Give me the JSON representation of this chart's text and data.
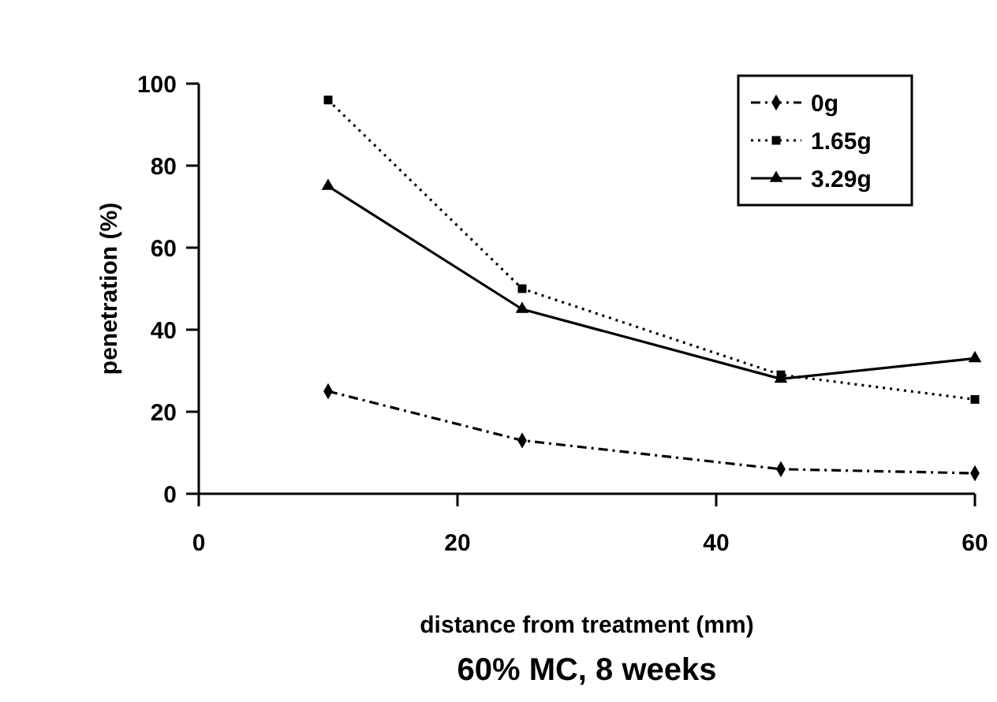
{
  "chart_data": {
    "type": "line",
    "title": "60% MC, 8 weeks",
    "xlabel": "distance from treatment (mm)",
    "ylabel": "penetration (%)",
    "x": [
      10,
      25,
      45,
      60
    ],
    "xlim": [
      0,
      60
    ],
    "xticks": [
      0,
      20,
      40,
      60
    ],
    "ylim": [
      0,
      100
    ],
    "yticks": [
      0,
      20,
      40,
      60,
      80,
      100
    ],
    "legend": "top right",
    "grid": false,
    "series": [
      {
        "name": "0g",
        "color": "#000000",
        "values": [
          25,
          13,
          6,
          5
        ],
        "marker": "diamond",
        "line_style": "dashed"
      },
      {
        "name": "1.65g",
        "color": "#000000",
        "values": [
          96,
          50,
          29,
          23
        ],
        "marker": "square",
        "line_style": "dotted"
      },
      {
        "name": "3.29g",
        "color": "#000000",
        "values": [
          75,
          45,
          28,
          33
        ],
        "marker": "triangle",
        "line_style": "solid"
      }
    ]
  }
}
